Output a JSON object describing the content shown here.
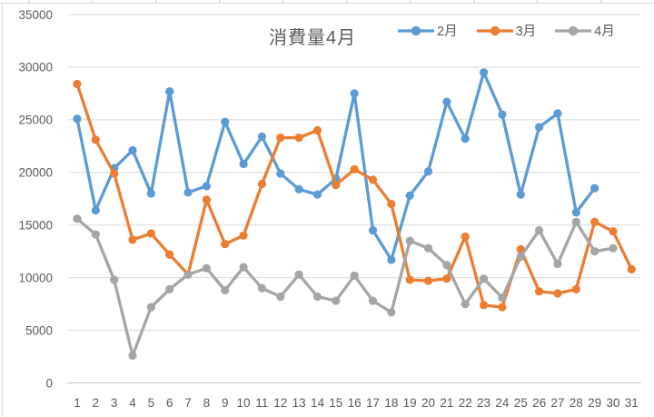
{
  "title": "消費量4月",
  "colors": {
    "gridline": "#D9D9D9",
    "axis_line": "#BFBFBF",
    "label_text": "#595959",
    "title_text": "#595959",
    "frame_tick": "#C9C9C9"
  },
  "chart_data": {
    "type": "line",
    "title": "消費量4月",
    "xlabel": "",
    "ylabel": "",
    "ylim": [
      0,
      35000
    ],
    "ytick_step": 5000,
    "ytick_labels": [
      "0",
      "5000",
      "10000",
      "15000",
      "20000",
      "25000",
      "30000",
      "35000"
    ],
    "grid": true,
    "legend_position": "top-right",
    "marker": "circle",
    "categories": [
      1,
      2,
      3,
      4,
      5,
      6,
      7,
      8,
      9,
      10,
      11,
      12,
      13,
      14,
      15,
      16,
      17,
      18,
      19,
      20,
      21,
      22,
      23,
      24,
      25,
      26,
      27,
      28,
      29,
      30,
      31
    ],
    "series": [
      {
        "name": "2月",
        "color": "#5B9BD5",
        "values": [
          25100,
          16400,
          20400,
          22100,
          18000,
          27700,
          18100,
          18700,
          24800,
          20800,
          23400,
          19900,
          18400,
          17900,
          19400,
          27500,
          14500,
          11700,
          17800,
          20100,
          26700,
          23200,
          29500,
          25500,
          17900,
          24300,
          25600,
          16200,
          18500
        ]
      },
      {
        "name": "3月",
        "color": "#ED7D31",
        "values": [
          28400,
          23100,
          19900,
          13600,
          14200,
          12200,
          10300,
          17400,
          13200,
          14000,
          18900,
          23300,
          23300,
          24000,
          18800,
          20300,
          19300,
          17000,
          9800,
          9700,
          9900,
          13900,
          7400,
          7200,
          12700,
          8700,
          8500,
          8900,
          15300,
          14400,
          10800
        ]
      },
      {
        "name": "4月",
        "color": "#A5A5A5",
        "values": [
          15600,
          14100,
          9800,
          2600,
          7200,
          8900,
          10300,
          10900,
          8800,
          11000,
          9000,
          8200,
          10300,
          8200,
          7800,
          10200,
          7800,
          6700,
          13500,
          12800,
          11200,
          7500,
          9900,
          8100,
          12000,
          14500,
          11300,
          15300,
          12500,
          12800
        ]
      }
    ]
  }
}
